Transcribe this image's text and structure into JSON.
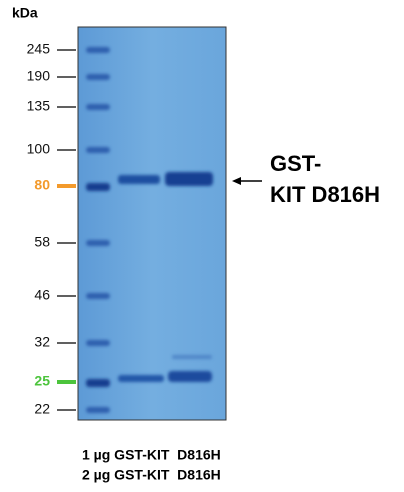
{
  "unit_label": "kDa",
  "markers": [
    "245",
    "190",
    "135",
    "100",
    "80",
    "58",
    "46",
    "32",
    "25",
    "22"
  ],
  "annotation": {
    "line1": "GST-",
    "line2": "KIT D816H"
  },
  "lanes": [
    "1 µg GST-KIT  D816H",
    "2 µg GST-KIT  D816H"
  ]
}
